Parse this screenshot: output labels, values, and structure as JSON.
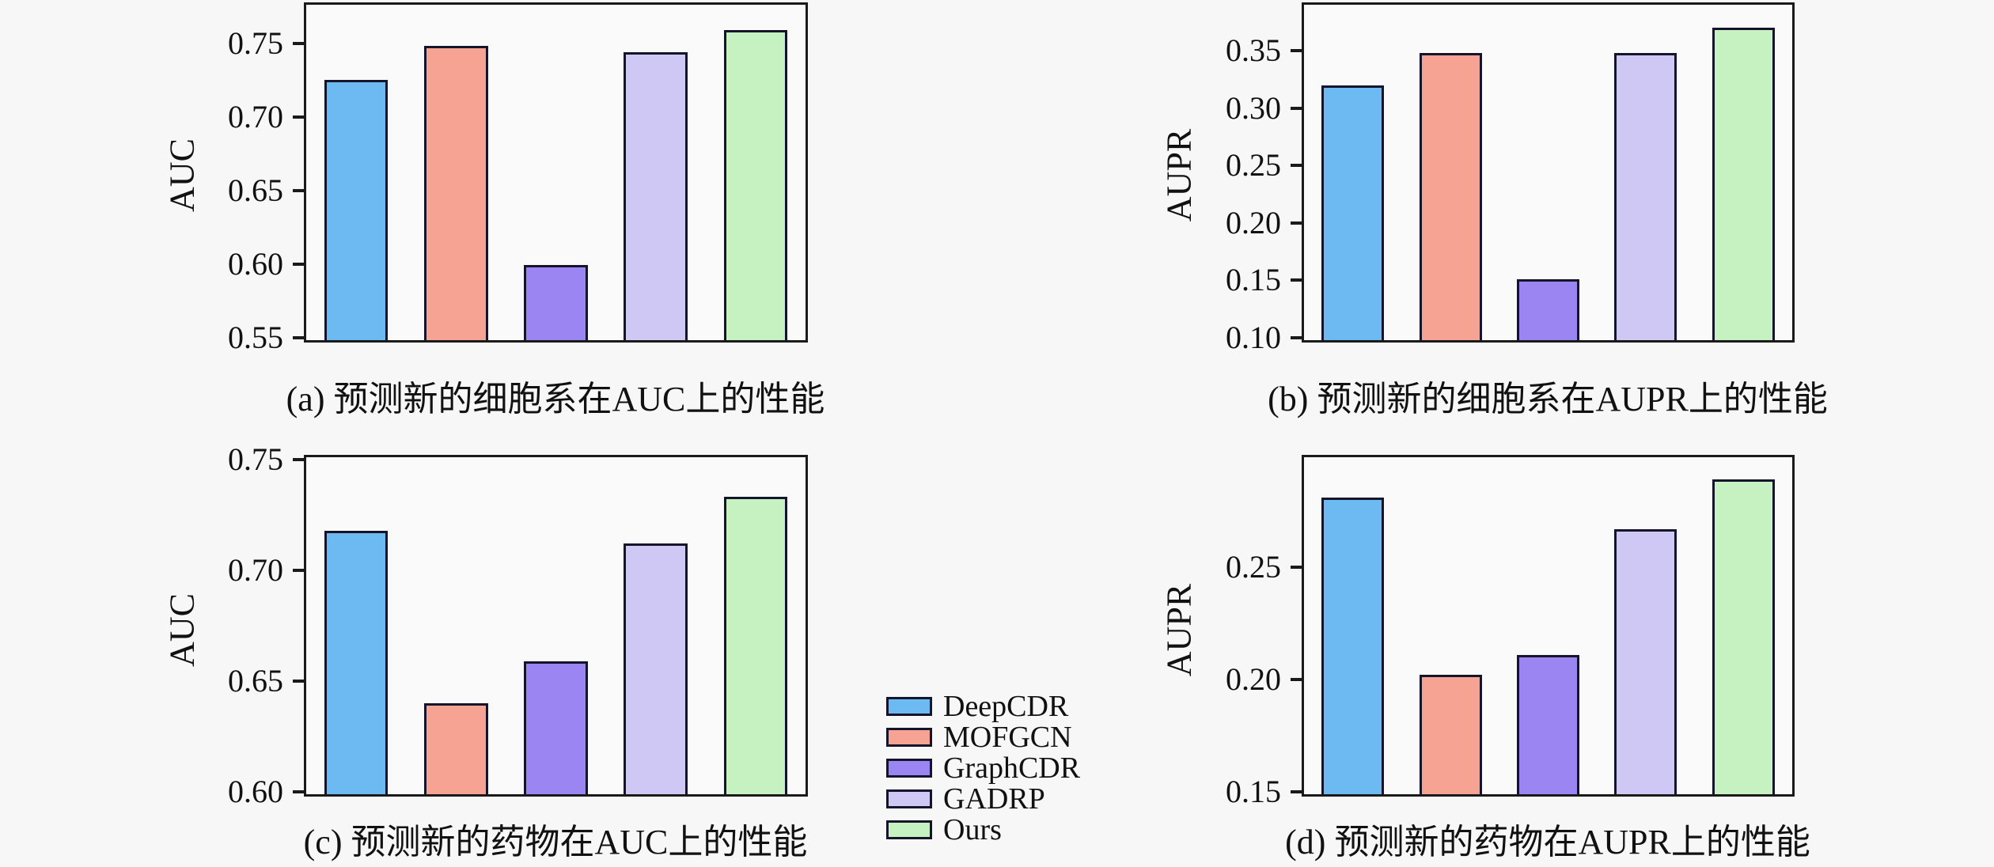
{
  "page": {
    "background": "#f7f7f7",
    "plot_background": "#fafafa"
  },
  "colors": {
    "bar_fills": [
      "#6db9f2",
      "#f7a394",
      "#9b85f2",
      "#cfc8f4",
      "#c6f2c2"
    ],
    "bar_border": "#14142b",
    "spine": "#1a1a1a",
    "text": "#111111"
  },
  "legend": {
    "items": [
      {
        "label": "DeepCDR",
        "color": "#6db9f2"
      },
      {
        "label": "MOFGCN",
        "color": "#f7a394"
      },
      {
        "label": "GraphCDR",
        "color": "#9b85f2"
      },
      {
        "label": "GADRP",
        "color": "#cfc8f4"
      },
      {
        "label": "Ours",
        "color": "#c6f2c2"
      }
    ]
  },
  "chart_data": [
    {
      "id": "a",
      "type": "bar",
      "title": "",
      "xlabel": "",
      "ylabel": "AUC",
      "caption": "(a) 预测新的细胞系在AUC上的性能",
      "categories": [
        "DeepCDR",
        "MOFGCN",
        "GraphCDR",
        "GADRP",
        "Ours"
      ],
      "values": [
        0.727,
        0.75,
        0.601,
        0.746,
        0.761
      ],
      "ylim": [
        0.55,
        0.778
      ],
      "yticks": [
        0.55,
        0.6,
        0.65,
        0.7,
        0.75
      ],
      "ytick_labels": [
        "0.55",
        "0.60",
        "0.65",
        "0.70",
        "0.75"
      ],
      "grid": false,
      "legend_position": "none"
    },
    {
      "id": "b",
      "type": "bar",
      "title": "",
      "xlabel": "",
      "ylabel": "AUPR",
      "caption": "(b) 预测新的细胞系在AUPR上的性能",
      "categories": [
        "DeepCDR",
        "MOFGCN",
        "GraphCDR",
        "GADRP",
        "Ours"
      ],
      "values": [
        0.322,
        0.35,
        0.153,
        0.35,
        0.372
      ],
      "ylim": [
        0.1,
        0.392
      ],
      "yticks": [
        0.1,
        0.15,
        0.2,
        0.25,
        0.3,
        0.35
      ],
      "ytick_labels": [
        "0.10",
        "0.15",
        "0.20",
        "0.25",
        "0.30",
        "0.35"
      ],
      "grid": false,
      "legend_position": "none"
    },
    {
      "id": "c",
      "type": "bar",
      "title": "",
      "xlabel": "",
      "ylabel": "AUC",
      "caption": "(c) 预测新的药物在AUC上的性能",
      "categories": [
        "DeepCDR",
        "MOFGCN",
        "GraphCDR",
        "GADRP",
        "Ours"
      ],
      "values": [
        0.719,
        0.641,
        0.66,
        0.713,
        0.734
      ],
      "ylim": [
        0.6,
        0.752
      ],
      "yticks": [
        0.6,
        0.65,
        0.7,
        0.75
      ],
      "ytick_labels": [
        "0.60",
        "0.65",
        "0.70",
        "0.75"
      ],
      "grid": false,
      "legend_position": "none"
    },
    {
      "id": "d",
      "type": "bar",
      "title": "",
      "xlabel": "",
      "ylabel": "AUPR",
      "caption": "(d) 预测新的药物在AUPR上的性能",
      "categories": [
        "DeepCDR",
        "MOFGCN",
        "GraphCDR",
        "GADRP",
        "Ours"
      ],
      "values": [
        0.282,
        0.203,
        0.212,
        0.268,
        0.29
      ],
      "ylim": [
        0.15,
        0.3
      ],
      "yticks": [
        0.15,
        0.2,
        0.25
      ],
      "ytick_labels": [
        "0.15",
        "0.20",
        "0.25"
      ],
      "grid": false,
      "legend_position": "none"
    }
  ]
}
